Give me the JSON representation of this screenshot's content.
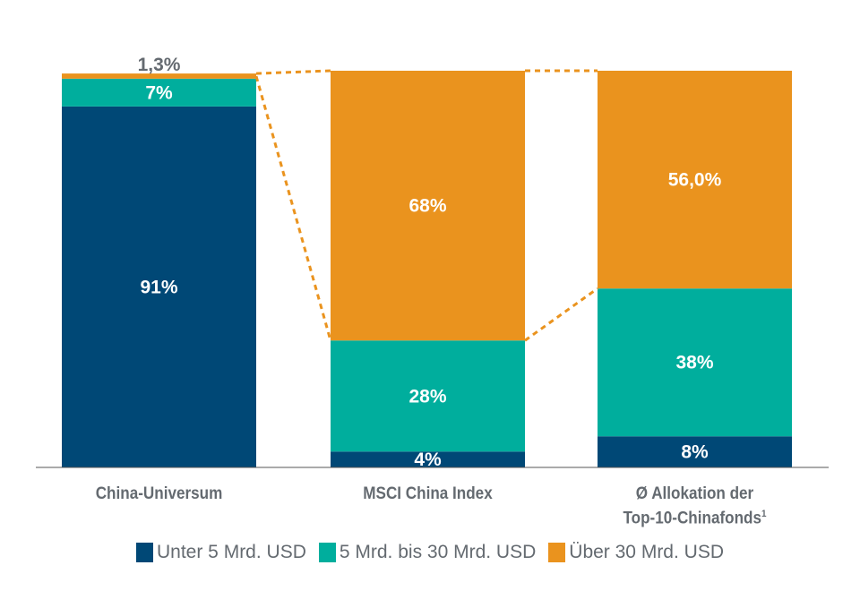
{
  "chart_data": {
    "type": "bar",
    "stacked": true,
    "categories": [
      "China-Universum",
      "MSCI China Index",
      "Ø Allokation der Top-10-Chinafonds"
    ],
    "category_lines": [
      [
        "China-Universum"
      ],
      [
        "MSCI China Index"
      ],
      [
        "Ø Allokation der",
        "Top-10-Chinafonds"
      ]
    ],
    "footnote_marker": "1",
    "series": [
      {
        "name": "Unter 5 Mrd. USD",
        "color": "#004876",
        "values": [
          91,
          4,
          8
        ],
        "labels": [
          "91%",
          "4%",
          "8%"
        ]
      },
      {
        "name": "5 Mrd. bis 30 Mrd. USD",
        "color": "#00AE9D",
        "values": [
          7,
          28,
          38
        ],
        "labels": [
          "7%",
          "28%",
          "38%"
        ]
      },
      {
        "name": "Über 30 Mrd. USD",
        "color": "#EA931E",
        "values": [
          1.3,
          68,
          56
        ],
        "labels": [
          "1,3%",
          "68%",
          "56,0%"
        ]
      }
    ],
    "ylim": [
      0,
      100
    ],
    "grid": false,
    "connectors": "dotted orange lines linking bars",
    "legend_position": "bottom"
  }
}
